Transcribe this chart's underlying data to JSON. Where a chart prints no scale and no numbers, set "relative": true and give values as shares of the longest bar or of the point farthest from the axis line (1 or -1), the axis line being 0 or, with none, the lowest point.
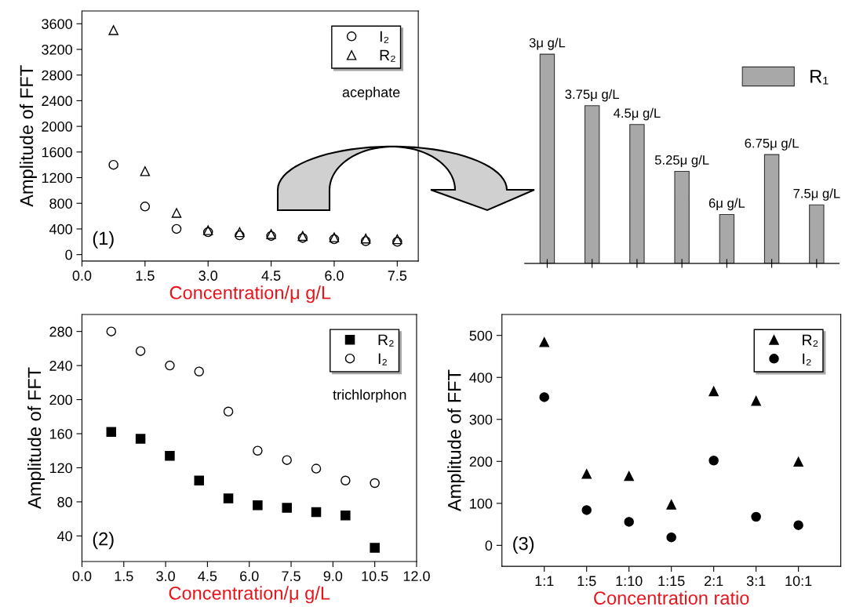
{
  "chart_data": [
    {
      "type": "scatter",
      "xlabel": "Concentration/μ g/L",
      "ylabel": "Amplitude of FFT",
      "x": [
        0.75,
        1.5,
        2.25,
        3.0,
        3.75,
        4.5,
        5.25,
        6.0,
        6.75,
        7.5
      ],
      "series": [
        {
          "name": "I₂",
          "color": "#000000",
          "marker": "circle",
          "values": [
            1400,
            750,
            400,
            350,
            300,
            290,
            260,
            240,
            210,
            200
          ]
        },
        {
          "name": "R₂",
          "color": "#000000",
          "marker": "triangle",
          "values": [
            3500,
            1300,
            650,
            380,
            350,
            320,
            290,
            270,
            250,
            240
          ]
        }
      ],
      "xlim": [
        0,
        8
      ],
      "xticks": [
        {
          "value": 0,
          "label": "0.0"
        },
        1.5,
        {
          "value": 3,
          "label": "3.0"
        },
        4.5,
        {
          "value": 6,
          "label": "6.0"
        },
        7.5
      ],
      "ylim": [
        -100,
        3800
      ],
      "yticks": [
        0,
        400,
        800,
        1200,
        1600,
        2000,
        2400,
        2800,
        3200,
        3600
      ],
      "legend": "top right",
      "grid": false,
      "annotations": [
        "(1)",
        "acephate"
      ]
    },
    {
      "type": "bar",
      "relative": true,
      "categories": [
        null,
        null,
        null,
        null,
        null,
        null,
        null
      ],
      "series": [
        {
          "name": "R₁",
          "color": "#a8a8a8",
          "values": [
            1,
            0.754,
            0.664,
            0.44,
            0.234,
            0.52,
            0.28
          ]
        }
      ],
      "legend": "top right",
      "grid": false,
      "annotations": [
        "3μ g/L",
        "3.75μ g/L",
        "4.5μ g/L",
        "5.25μ g/L",
        "6μ g/L",
        "6.75μ g/L",
        "7.5μ g/L"
      ]
    },
    {
      "type": "scatter",
      "xlabel": "Concentration/μ g/L",
      "ylabel": "Amplitude of FFT",
      "x": [
        1.05,
        2.1,
        3.15,
        4.2,
        5.25,
        6.3,
        7.35,
        8.4,
        9.45,
        10.5
      ],
      "series": [
        {
          "name": "R₂",
          "color": "#000000",
          "marker": "square",
          "values": [
            162,
            154,
            134,
            105,
            84,
            76,
            73,
            68,
            64,
            26
          ]
        },
        {
          "name": "I₂",
          "color": "#000000",
          "marker": "circle",
          "values": [
            280,
            257,
            240,
            233,
            186,
            140,
            129,
            119,
            105,
            102
          ]
        }
      ],
      "xlim": [
        0,
        12
      ],
      "xticks": [
        {
          "value": 0,
          "label": "0.0"
        },
        1.5,
        {
          "value": 3,
          "label": "3.0"
        },
        4.5,
        {
          "value": 6,
          "label": "6.0"
        },
        7.5,
        {
          "value": 9,
          "label": "9.0"
        },
        10.5,
        {
          "value": 12,
          "label": "12.0"
        }
      ],
      "ylim": [
        10,
        300
      ],
      "yticks": [
        40,
        80,
        120,
        160,
        200,
        240,
        280
      ],
      "legend": "top right",
      "grid": false,
      "annotations": [
        "(2)",
        "trichlorphon"
      ]
    },
    {
      "type": "scatter",
      "xlabel": "Concentration ratio",
      "ylabel": "Amplitude of FFT",
      "categories": [
        "1:1",
        "1:5",
        "1:10",
        "1:15",
        "2:1",
        "3:1",
        "10:1"
      ],
      "series": [
        {
          "name": "R₂",
          "color": "#000000",
          "marker": "triangle",
          "values": [
            484,
            170,
            165,
            97,
            367,
            344,
            199
          ]
        },
        {
          "name": "I₂",
          "color": "#000000",
          "marker": "circle",
          "values": [
            353,
            84,
            56,
            19,
            202,
            68,
            48
          ]
        }
      ],
      "ylim": [
        -50,
        550
      ],
      "yticks": [
        0,
        100,
        200,
        300,
        400,
        500
      ],
      "legend": "top right",
      "grid": false,
      "annotations": [
        "(3)"
      ]
    }
  ]
}
